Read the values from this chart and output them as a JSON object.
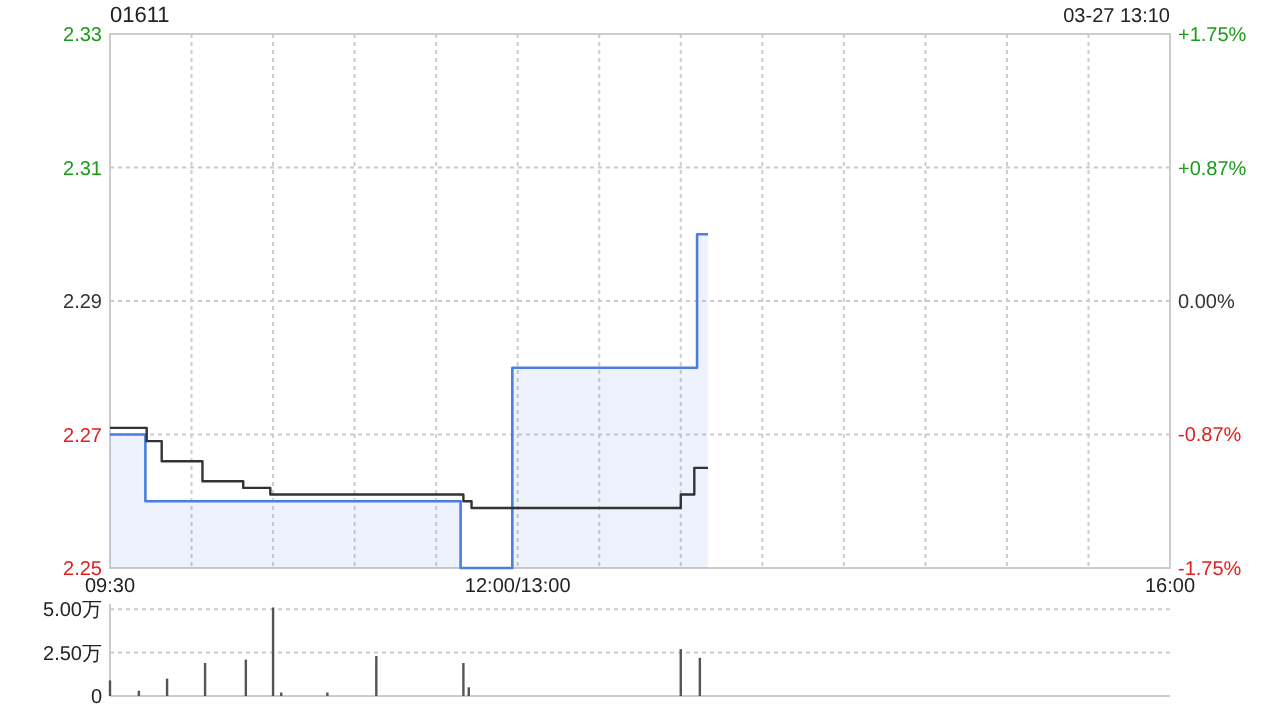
{
  "chart_data": [
    {
      "type": "step",
      "title": "01611",
      "annotations": [
        "03-27 13:10"
      ],
      "series": [
        {
          "type": "area",
          "color": "#4a7fe0",
          "x": [
            9.5,
            9.717,
            11.65,
            11.967,
            13.1,
            13.167
          ],
          "values": [
            2.27,
            2.26,
            2.25,
            2.28,
            2.3,
            2.3
          ]
        },
        {
          "type": "step",
          "color": "#333333",
          "x": [
            9.5,
            9.725,
            9.817,
            10.067,
            10.317,
            10.483,
            11.667,
            11.717,
            13,
            13.083,
            13.167
          ],
          "values": [
            2.271,
            2.269,
            2.266,
            2.263,
            2.262,
            2.261,
            2.26,
            2.259,
            2.261,
            2.265,
            2.265
          ]
        }
      ],
      "xlim": [
        9.5,
        16
      ],
      "xticks": [
        {
          "value": 9.5,
          "label": "09:30"
        },
        {
          "value": 10,
          "label": null
        },
        {
          "value": 10.5,
          "label": null
        },
        {
          "value": 11,
          "label": null
        },
        {
          "value": 11.5,
          "label": null
        },
        {
          "value": 12,
          "label": "12:00/13:00"
        },
        {
          "value": 12.5,
          "label": null
        },
        {
          "value": 13,
          "label": null
        },
        {
          "value": 13.5,
          "label": null
        },
        {
          "value": 14,
          "label": null
        },
        {
          "value": 14.5,
          "label": null
        },
        {
          "value": 15,
          "label": null
        },
        {
          "value": 15.5,
          "label": null
        },
        {
          "value": 16,
          "label": "16:00"
        }
      ],
      "ylim": [
        2.25,
        2.33
      ],
      "yticks": [
        2.25,
        2.27,
        2.29,
        2.31,
        2.33
      ],
      "y2lim": [
        -1.75,
        1.75
      ],
      "y2ticks": [
        {
          "value": -1.75,
          "label": "-1.75%"
        },
        {
          "value": -0.87,
          "label": "-0.87%"
        },
        {
          "value": 0,
          "label": "0.00%"
        },
        {
          "value": 0.87,
          "label": "+0.87%"
        },
        {
          "value": 1.75,
          "label": "+1.75%"
        }
      ],
      "grid": true
    },
    {
      "type": "bar",
      "color": "#555555",
      "x": [
        9.5,
        9.677,
        9.85,
        10.083,
        10.333,
        10.5,
        10.55,
        10.833,
        11.133,
        11.667,
        11.7,
        13,
        13.117
      ],
      "values": [
        0.9,
        0.3,
        1,
        1.9,
        2.1,
        5.1,
        0.2,
        0.2,
        2.3,
        1.9,
        0.5,
        2.7,
        2.2
      ],
      "xlim": [
        9.5,
        16
      ],
      "ylim": [
        0,
        5.3
      ],
      "yticks": [
        0,
        {
          "value": 2.5,
          "label": "2.50万"
        },
        {
          "value": 5,
          "label": "5.00万"
        }
      ],
      "grid": "y",
      "tick_labels": "y"
    }
  ]
}
